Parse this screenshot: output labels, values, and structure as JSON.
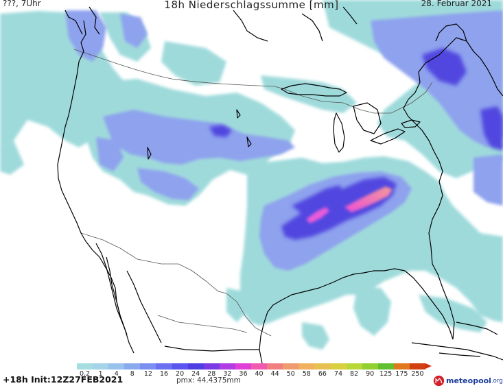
{
  "header": {
    "valid_time": "???, 7Uhr",
    "title": "18h Niederschlagssumme [mm]",
    "date": "28. Februar 2021"
  },
  "footer": {
    "run_info": "+18h Init:12Z27FEB2021",
    "max_value": "pmx: 44.4375mm"
  },
  "brand": {
    "name": "meteopool",
    "suffix": ".org"
  },
  "legend": {
    "unit": "mm",
    "ticks": [
      "0.2",
      "1",
      "4",
      "8",
      "12",
      "16",
      "20",
      "24",
      "28",
      "32",
      "36",
      "40",
      "44",
      "50",
      "58",
      "66",
      "74",
      "82",
      "90",
      "125",
      "175",
      "250"
    ],
    "colors": [
      "#a6dde0",
      "#a5d3ea",
      "#97c2ec",
      "#8aaaee",
      "#7a8ff0",
      "#6a70f0",
      "#5a55ee",
      "#4f3ee4",
      "#7a3be4",
      "#b03ee4",
      "#e040d8",
      "#f05ab0",
      "#f08080",
      "#f09a70",
      "#f0b060",
      "#e8c050",
      "#d8d040",
      "#b8d838",
      "#90d030",
      "#60c030",
      "#e07820",
      "#d04010"
    ]
  },
  "map": {
    "region": "North America",
    "colors": {
      "background": "#ffffff",
      "light_precip": "#9fdadb",
      "moderate_precip": "#8ea2ee",
      "heavy_precip": "#5147e0",
      "max_precip": "#e95bd9",
      "coastline": "#000000",
      "borders": "#555555"
    }
  }
}
